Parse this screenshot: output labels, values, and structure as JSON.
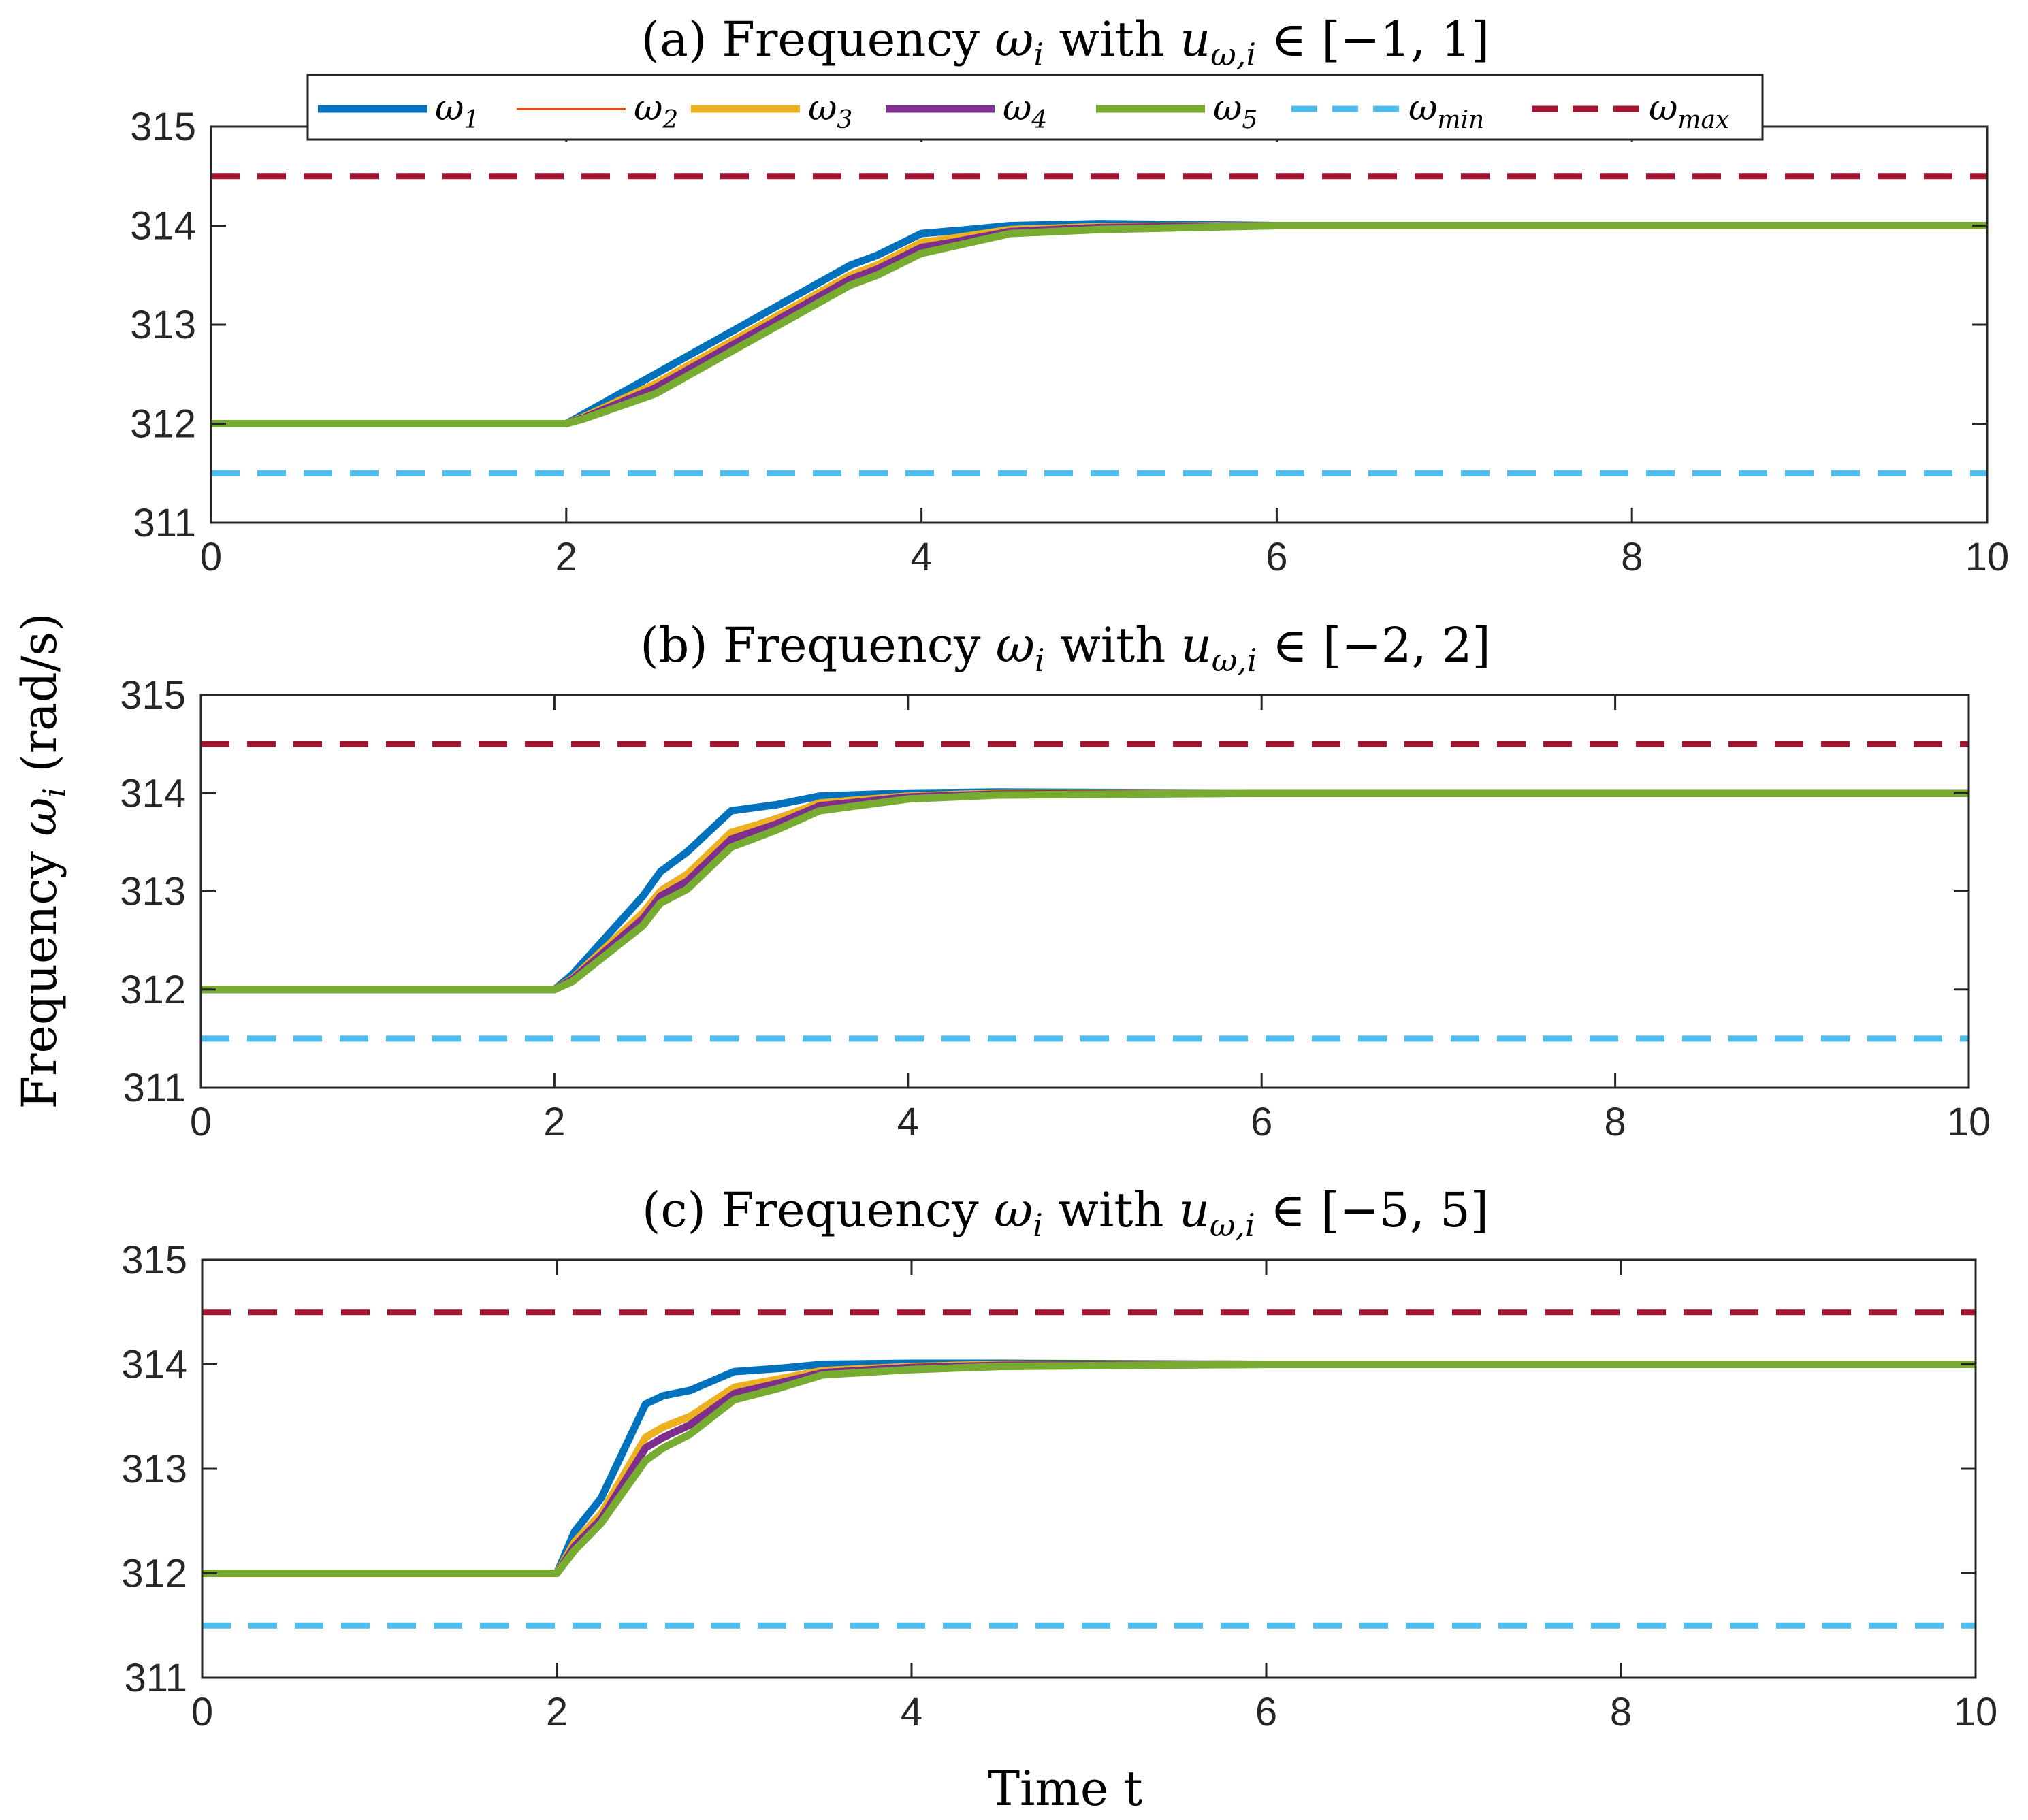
{
  "figure": {
    "ylabel": "Frequency ω_i (rad/s)",
    "ylabel_main": "Frequency ",
    "ylabel_sym": "ω",
    "ylabel_sub": "i",
    "ylabel_unit": " (rad/s)",
    "xlabel": "Time t"
  },
  "colors": {
    "w1": "#0072BD",
    "w2": "#D95319",
    "w3": "#EDB120",
    "w4": "#7E2F8E",
    "w5": "#77AC30",
    "wmin": "#4DBEEE",
    "wmax": "#A2142F"
  },
  "chart_data": [
    {
      "id": "a",
      "type": "line",
      "title": "(a) Frequency ω_i with u_{ω,i} ∈ [−1, 1]",
      "title_parts": {
        "prefix": "(a) Frequency ",
        "w": "ω",
        "wsub": "i",
        "mid": " with ",
        "u": "u",
        "usub": "ω,i",
        "set": " ∈ [−1, 1]"
      },
      "xlim": [
        0,
        10
      ],
      "ylim": [
        311,
        315
      ],
      "xticks": [
        "0",
        "2",
        "4",
        "6",
        "8",
        "10"
      ],
      "yticks": [
        "311",
        "312",
        "313",
        "314",
        "315"
      ],
      "has_legend": true,
      "series": [
        {
          "name": "ω_1",
          "color_key": "w1",
          "x": [
            0,
            2,
            2.1,
            2.5,
            3.0,
            3.3,
            3.6,
            3.75,
            4.0,
            4.2,
            4.5,
            5.0,
            6.0,
            10
          ],
          "y": [
            312,
            312,
            312.1,
            312.5,
            313.0,
            313.3,
            313.6,
            313.7,
            313.92,
            313.95,
            314.0,
            314.02,
            314.0,
            314.0
          ]
        },
        {
          "name": "ω_2",
          "color_key": "w2",
          "x": [
            0,
            2,
            2.1,
            2.5,
            3.0,
            3.3,
            3.6,
            3.75,
            4.0,
            4.2,
            4.5,
            5.0,
            6.0,
            10
          ],
          "y": [
            312,
            312,
            312.08,
            312.42,
            312.92,
            313.22,
            313.52,
            313.62,
            313.85,
            313.9,
            313.97,
            314.0,
            314.0,
            314.0
          ]
        },
        {
          "name": "ω_3",
          "color_key": "w3",
          "x": [
            0,
            2,
            2.1,
            2.5,
            3.0,
            3.3,
            3.6,
            3.75,
            4.0,
            4.2,
            4.5,
            5.0,
            6.0,
            10
          ],
          "y": [
            312,
            312,
            312.07,
            312.4,
            312.9,
            313.2,
            313.5,
            313.6,
            313.83,
            313.88,
            313.96,
            313.99,
            314.0,
            314.0
          ]
        },
        {
          "name": "ω_4",
          "color_key": "w4",
          "x": [
            0,
            2,
            2.1,
            2.5,
            3.0,
            3.3,
            3.6,
            3.75,
            4.0,
            4.2,
            4.5,
            5.0,
            6.0,
            10
          ],
          "y": [
            312,
            312,
            312.06,
            312.36,
            312.86,
            313.16,
            313.46,
            313.56,
            313.78,
            313.84,
            313.94,
            313.98,
            314.0,
            314.0
          ]
        },
        {
          "name": "ω_5",
          "color_key": "w5",
          "x": [
            0,
            2,
            2.1,
            2.5,
            3.0,
            3.3,
            3.6,
            3.75,
            4.0,
            4.2,
            4.5,
            5.0,
            6.0,
            10
          ],
          "y": [
            312,
            312,
            312.05,
            312.3,
            312.8,
            313.1,
            313.4,
            313.5,
            313.72,
            313.8,
            313.92,
            313.96,
            314.0,
            314.0
          ]
        },
        {
          "name": "ω_min",
          "color_key": "wmin",
          "dashed": true,
          "x": [
            0,
            10
          ],
          "y": [
            311.5,
            311.5
          ]
        },
        {
          "name": "ω_max",
          "color_key": "wmax",
          "dashed": true,
          "x": [
            0,
            10
          ],
          "y": [
            314.5,
            314.5
          ]
        }
      ]
    },
    {
      "id": "b",
      "type": "line",
      "title": "(b) Frequency ω_i with u_{ω,i} ∈ [−2, 2]",
      "title_parts": {
        "prefix": "(b) Frequency ",
        "w": "ω",
        "wsub": "i",
        "mid": " with ",
        "u": "u",
        "usub": "ω,i",
        "set": " ∈ [−2, 2]"
      },
      "xlim": [
        0,
        10
      ],
      "ylim": [
        311,
        315
      ],
      "xticks": [
        "0",
        "2",
        "4",
        "6",
        "8",
        "10"
      ],
      "yticks": [
        "311",
        "312",
        "313",
        "314",
        "315"
      ],
      "has_legend": false,
      "series": [
        {
          "name": "ω_1",
          "color_key": "w1",
          "x": [
            0,
            2,
            2.1,
            2.5,
            2.6,
            2.75,
            3.0,
            3.25,
            3.5,
            4.0,
            4.5,
            6.0,
            10
          ],
          "y": [
            312,
            312,
            312.15,
            312.95,
            313.2,
            313.4,
            313.82,
            313.88,
            313.97,
            314.0,
            314.01,
            314.0,
            314.0
          ]
        },
        {
          "name": "ω_2",
          "color_key": "w2",
          "x": [
            0,
            2,
            2.1,
            2.5,
            2.6,
            2.75,
            3.0,
            3.25,
            3.5,
            4.0,
            4.5,
            6.0,
            10
          ],
          "y": [
            312,
            312,
            312.12,
            312.8,
            313.03,
            313.2,
            313.62,
            313.76,
            313.92,
            313.98,
            314.0,
            314.0,
            314.0
          ]
        },
        {
          "name": "ω_3",
          "color_key": "w3",
          "x": [
            0,
            2,
            2.1,
            2.5,
            2.6,
            2.75,
            3.0,
            3.25,
            3.5,
            4.0,
            4.5,
            6.0,
            10
          ],
          "y": [
            312,
            312,
            312.11,
            312.78,
            313.0,
            313.17,
            313.6,
            313.73,
            313.9,
            313.97,
            314.0,
            314.0,
            314.0
          ]
        },
        {
          "name": "ω_4",
          "color_key": "w4",
          "x": [
            0,
            2,
            2.1,
            2.5,
            2.6,
            2.75,
            3.0,
            3.25,
            3.5,
            4.0,
            4.5,
            6.0,
            10
          ],
          "y": [
            312,
            312,
            312.1,
            312.72,
            312.95,
            313.1,
            313.53,
            313.68,
            313.87,
            313.96,
            313.99,
            314.0,
            314.0
          ]
        },
        {
          "name": "ω_5",
          "color_key": "w5",
          "x": [
            0,
            2,
            2.1,
            2.5,
            2.6,
            2.75,
            3.0,
            3.25,
            3.5,
            4.0,
            4.5,
            6.0,
            10
          ],
          "y": [
            312,
            312,
            312.08,
            312.65,
            312.88,
            313.02,
            313.45,
            313.62,
            313.82,
            313.94,
            313.98,
            314.0,
            314.0
          ]
        },
        {
          "name": "ω_min",
          "color_key": "wmin",
          "dashed": true,
          "x": [
            0,
            10
          ],
          "y": [
            311.5,
            311.5
          ]
        },
        {
          "name": "ω_max",
          "color_key": "wmax",
          "dashed": true,
          "x": [
            0,
            10
          ],
          "y": [
            314.5,
            314.5
          ]
        }
      ]
    },
    {
      "id": "c",
      "type": "line",
      "title": "(c) Frequency ω_i with u_{ω,i} ∈ [−5, 5]",
      "title_parts": {
        "prefix": "(c) Frequency ",
        "w": "ω",
        "wsub": "i",
        "mid": " with ",
        "u": "u",
        "usub": "ω,i",
        "set": " ∈ [−5, 5]"
      },
      "xlim": [
        0,
        10
      ],
      "ylim": [
        311,
        315
      ],
      "xticks": [
        "0",
        "2",
        "4",
        "6",
        "8",
        "10"
      ],
      "yticks": [
        "311",
        "312",
        "313",
        "314",
        "315"
      ],
      "has_legend": false,
      "series": [
        {
          "name": "ω_1",
          "color_key": "w1",
          "x": [
            0,
            2,
            2.1,
            2.25,
            2.5,
            2.6,
            2.75,
            3.0,
            3.25,
            3.5,
            4.0,
            4.5,
            6.0,
            10
          ],
          "y": [
            312,
            312,
            312.4,
            312.72,
            313.62,
            313.7,
            313.75,
            313.93,
            313.96,
            314.0,
            314.01,
            314.01,
            314.0,
            314.0
          ]
        },
        {
          "name": "ω_2",
          "color_key": "w2",
          "x": [
            0,
            2,
            2.1,
            2.25,
            2.5,
            2.6,
            2.75,
            3.0,
            3.25,
            3.5,
            4.0,
            4.5,
            6.0,
            10
          ],
          "y": [
            312,
            312,
            312.32,
            312.6,
            313.32,
            313.42,
            313.52,
            313.8,
            313.88,
            313.95,
            313.98,
            314.0,
            314.0,
            314.0
          ]
        },
        {
          "name": "ω_3",
          "color_key": "w3",
          "x": [
            0,
            2,
            2.1,
            2.25,
            2.5,
            2.6,
            2.75,
            3.0,
            3.25,
            3.5,
            4.0,
            4.5,
            6.0,
            10
          ],
          "y": [
            312,
            312,
            312.3,
            312.57,
            313.3,
            313.4,
            313.5,
            313.78,
            313.86,
            313.94,
            313.98,
            314.0,
            314.0,
            314.0
          ]
        },
        {
          "name": "ω_4",
          "color_key": "w4",
          "x": [
            0,
            2,
            2.1,
            2.25,
            2.5,
            2.6,
            2.75,
            3.0,
            3.25,
            3.5,
            4.0,
            4.5,
            6.0,
            10
          ],
          "y": [
            312,
            312,
            312.26,
            312.52,
            313.2,
            313.3,
            313.42,
            313.72,
            313.82,
            313.92,
            313.97,
            313.99,
            314.0,
            314.0
          ]
        },
        {
          "name": "ω_5",
          "color_key": "w5",
          "x": [
            0,
            2,
            2.1,
            2.25,
            2.5,
            2.6,
            2.75,
            3.0,
            3.25,
            3.5,
            4.0,
            4.5,
            6.0,
            10
          ],
          "y": [
            312,
            312,
            312.22,
            312.48,
            313.08,
            313.2,
            313.33,
            313.66,
            313.77,
            313.9,
            313.95,
            313.98,
            314.0,
            314.0
          ]
        },
        {
          "name": "ω_min",
          "color_key": "wmin",
          "dashed": true,
          "x": [
            0,
            10
          ],
          "y": [
            311.5,
            311.5
          ]
        },
        {
          "name": "ω_max",
          "color_key": "wmax",
          "dashed": true,
          "x": [
            0,
            10
          ],
          "y": [
            314.5,
            314.5
          ]
        }
      ]
    }
  ],
  "legend": {
    "entries": [
      {
        "sym": "ω",
        "sub": "1",
        "color_key": "w1",
        "style": "solid-thick"
      },
      {
        "sym": "ω",
        "sub": "2",
        "color_key": "w2",
        "style": "solid-thin"
      },
      {
        "sym": "ω",
        "sub": "3",
        "color_key": "w3",
        "style": "solid-thick"
      },
      {
        "sym": "ω",
        "sub": "4",
        "color_key": "w4",
        "style": "solid-thick"
      },
      {
        "sym": "ω",
        "sub": "5",
        "color_key": "w5",
        "style": "solid-thick"
      },
      {
        "sym": "ω",
        "sub": "min",
        "color_key": "wmin",
        "style": "dashed"
      },
      {
        "sym": "ω",
        "sub": "max",
        "color_key": "wmax",
        "style": "dashed"
      }
    ]
  }
}
